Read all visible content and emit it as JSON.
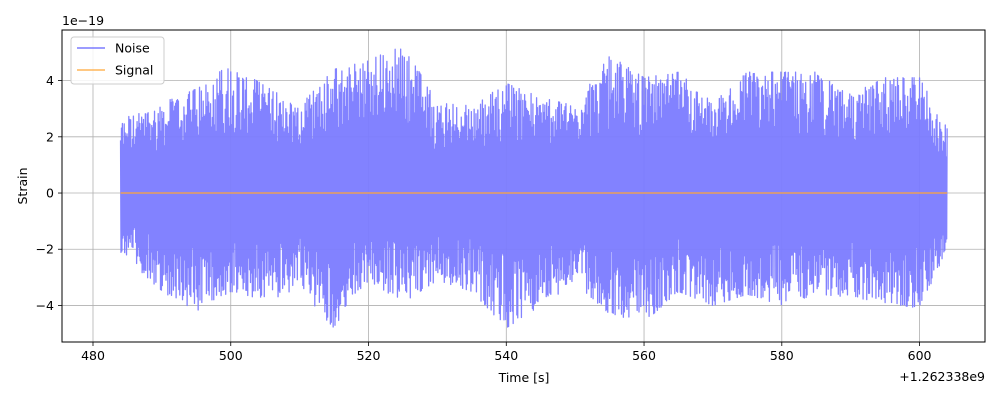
{
  "chart_data": {
    "type": "line",
    "title": "",
    "xlabel": "Time [s]",
    "ylabel": "Strain",
    "x_offset_label": "+1.262338e9",
    "y_scale_label": "1e−19",
    "xlim": [
      475.5,
      609.5
    ],
    "ylim": [
      -5.3,
      5.8
    ],
    "xticks": [
      480,
      500,
      520,
      540,
      560,
      580,
      600
    ],
    "xtick_labels": [
      "480",
      "500",
      "520",
      "540",
      "560",
      "580",
      "600"
    ],
    "yticks": [
      -4,
      -2,
      0,
      2,
      4
    ],
    "ytick_labels": [
      "−4",
      "−2",
      "0",
      "2",
      "4"
    ],
    "grid": true,
    "legend_position": "top-left",
    "series": [
      {
        "name": "Noise",
        "color": "#7b7bff",
        "x_range": [
          484,
          604
        ],
        "envelope_x": [
          484,
          490,
          495,
          500,
          505,
          510,
          515,
          520,
          525,
          530,
          535,
          540,
          545,
          550,
          555,
          560,
          565,
          570,
          575,
          580,
          585,
          590,
          595,
          600,
          604
        ],
        "envelope_max": [
          2.6,
          3.2,
          3.7,
          4.6,
          3.8,
          3.1,
          4.4,
          4.7,
          5.3,
          3.2,
          3.1,
          3.9,
          3.4,
          3.1,
          4.9,
          4.1,
          4.3,
          3.2,
          4.3,
          4.3,
          4.3,
          3.5,
          4.1,
          4.1,
          2.3
        ],
        "envelope_min": [
          -2.1,
          -3.5,
          -4.2,
          -3.5,
          -3.8,
          -3.5,
          -4.8,
          -3.1,
          -3.9,
          -3.1,
          -3.5,
          -4.8,
          -4.0,
          -3.2,
          -4.3,
          -4.6,
          -3.5,
          -4.0,
          -3.6,
          -4.0,
          -3.6,
          -3.7,
          -3.9,
          -4.1,
          -2.0
        ]
      },
      {
        "name": "Signal",
        "color": "#ffa638",
        "x": [
          484,
          604
        ],
        "y": [
          0,
          0
        ]
      }
    ]
  }
}
